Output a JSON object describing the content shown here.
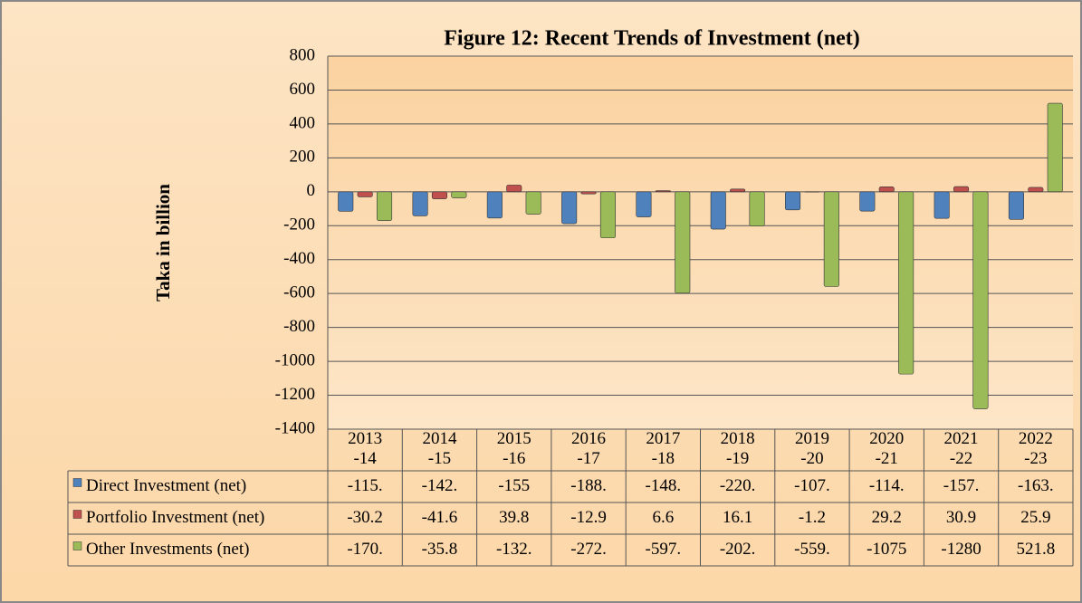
{
  "chart_data": {
    "type": "bar",
    "title": "Figure 12: Recent Trends of Investment (net)",
    "ylabel": "Taka in billion",
    "categories": [
      "2013\n-14",
      "2014\n-15",
      "2015\n-16",
      "2016\n-17",
      "2017\n-18",
      "2018\n-19",
      "2019\n-20",
      "2020\n-21",
      "2021\n-22",
      "2022\n-23"
    ],
    "series": [
      {
        "name": "Direct Investment (net)",
        "color": "#4f81bd",
        "values": [
          -115,
          -142,
          -155,
          -188,
          -148,
          -220,
          -107,
          -114,
          -157,
          -163
        ],
        "value_labels": [
          "-115.",
          "-142.",
          "-155",
          "-188.",
          "-148.",
          "-220.",
          "-107.",
          "-114.",
          "-157.",
          "-163."
        ]
      },
      {
        "name": "Portfolio Investment (net)",
        "color": "#c0504d",
        "values": [
          -30.2,
          -41.6,
          39.8,
          -12.9,
          6.6,
          16.1,
          -1.2,
          29.2,
          30.9,
          25.9
        ]
      },
      {
        "name": "Other Investments (net)",
        "color": "#9bbb59",
        "values": [
          -170,
          -35.8,
          -132,
          -272,
          -597,
          -202,
          -559,
          -1075,
          -1280,
          521.8
        ],
        "value_labels": [
          "-170.",
          "-35.8",
          "-132.",
          "-272.",
          "-597.",
          "-202.",
          "-559.",
          "-1075",
          "-1280",
          "521.8"
        ]
      }
    ],
    "ylim": [
      -1400,
      800
    ],
    "yticks": [
      800,
      600,
      400,
      200,
      0,
      -200,
      -400,
      -600,
      -800,
      -1000,
      -1200,
      -1400
    ],
    "grid": true
  }
}
